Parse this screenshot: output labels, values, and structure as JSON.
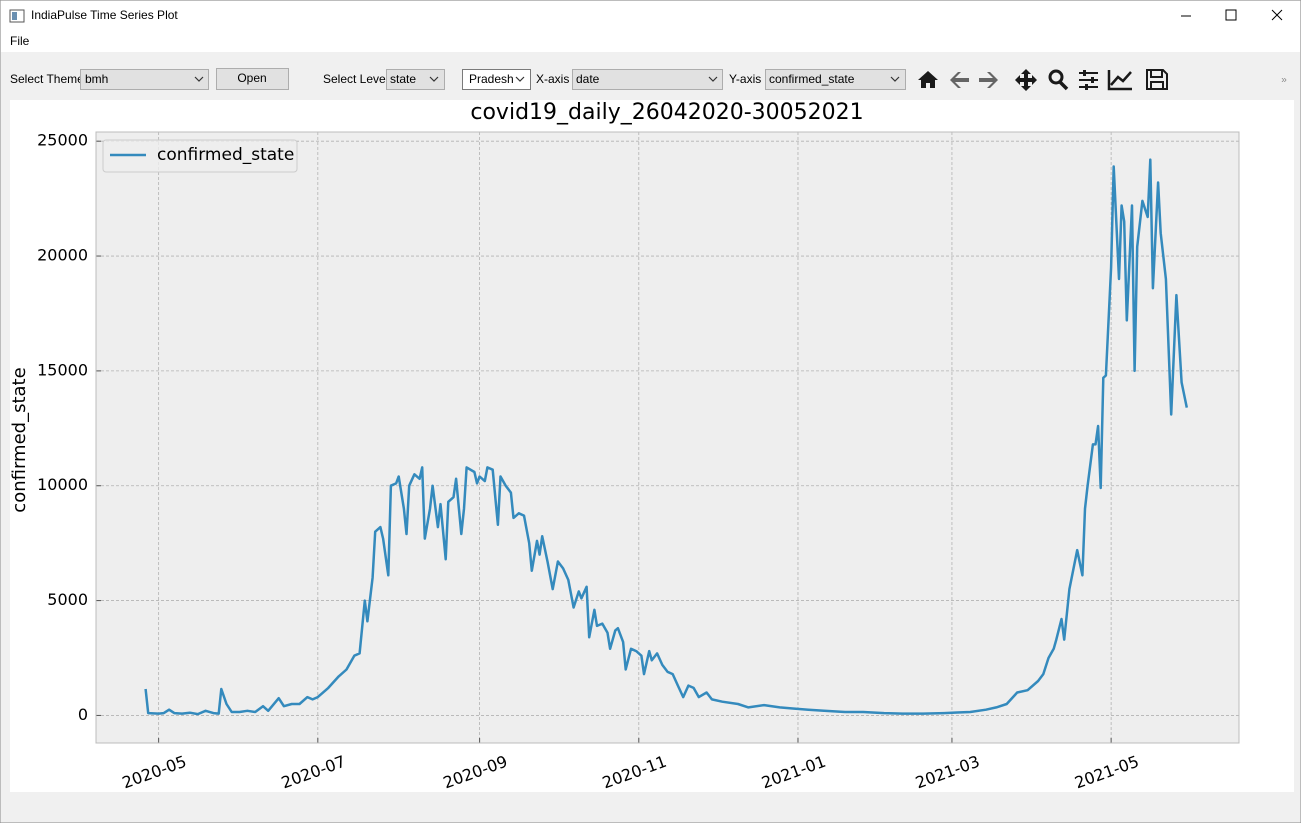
{
  "window": {
    "title": "IndiaPulse Time Series Plot"
  },
  "menu": [
    "File"
  ],
  "toolbar": {
    "theme_label": "Select Theme",
    "theme": "bmh",
    "open_button": "Open",
    "level_label": "Select Level",
    "level": "state",
    "region": "Pradesh",
    "x_label": "X-axis",
    "x_value": "date",
    "y_label": "Y-axis",
    "y_value": "confirmed_state"
  },
  "chart_data": {
    "type": "line",
    "title": "covid19_daily_26042020-30052021",
    "y_label": "confirmed_state",
    "x": [
      "2020-04-26",
      "2020-04-27",
      "2020-05-01",
      "2020-05-03",
      "2020-05-05",
      "2020-05-07",
      "2020-05-10",
      "2020-05-13",
      "2020-05-16",
      "2020-05-19",
      "2020-05-22",
      "2020-05-24",
      "2020-05-25",
      "2020-05-27",
      "2020-05-29",
      "2020-06-01",
      "2020-06-04",
      "2020-06-07",
      "2020-06-10",
      "2020-06-12",
      "2020-06-16",
      "2020-06-18",
      "2020-06-21",
      "2020-06-24",
      "2020-06-27",
      "2020-06-29",
      "2020-07-01",
      "2020-07-05",
      "2020-07-09",
      "2020-07-12",
      "2020-07-15",
      "2020-07-17",
      "2020-07-19",
      "2020-07-20",
      "2020-07-22",
      "2020-07-23",
      "2020-07-25",
      "2020-07-26",
      "2020-07-28",
      "2020-07-29",
      "2020-07-31",
      "2020-08-01",
      "2020-08-03",
      "2020-08-04",
      "2020-08-05",
      "2020-08-07",
      "2020-08-09",
      "2020-08-10",
      "2020-08-11",
      "2020-08-13",
      "2020-08-14",
      "2020-08-16",
      "2020-08-17",
      "2020-08-19",
      "2020-08-20",
      "2020-08-22",
      "2020-08-23",
      "2020-08-25",
      "2020-08-26",
      "2020-08-27",
      "2020-08-30",
      "2020-08-31",
      "2020-09-01",
      "2020-09-03",
      "2020-09-04",
      "2020-09-06",
      "2020-09-08",
      "2020-09-09",
      "2020-09-11",
      "2020-09-13",
      "2020-09-14",
      "2020-09-16",
      "2020-09-18",
      "2020-09-20",
      "2020-09-21",
      "2020-09-23",
      "2020-09-24",
      "2020-09-25",
      "2020-09-27",
      "2020-09-29",
      "2020-10-01",
      "2020-10-03",
      "2020-10-05",
      "2020-10-07",
      "2020-10-09",
      "2020-10-10",
      "2020-10-12",
      "2020-10-13",
      "2020-10-15",
      "2020-10-16",
      "2020-10-18",
      "2020-10-20",
      "2020-10-21",
      "2020-10-23",
      "2020-10-24",
      "2020-10-26",
      "2020-10-27",
      "2020-10-29",
      "2020-10-31",
      "2020-11-02",
      "2020-11-03",
      "2020-11-05",
      "2020-11-06",
      "2020-11-08",
      "2020-11-10",
      "2020-11-12",
      "2020-11-14",
      "2020-11-16",
      "2020-11-18",
      "2020-11-20",
      "2020-11-22",
      "2020-11-24",
      "2020-11-27",
      "2020-11-29",
      "2020-12-03",
      "2020-12-09",
      "2020-12-13",
      "2020-12-19",
      "2020-12-25",
      "2020-12-30",
      "2021-01-05",
      "2021-01-11",
      "2021-01-19",
      "2021-01-26",
      "2021-02-03",
      "2021-02-10",
      "2021-02-18",
      "2021-02-26",
      "2021-03-03",
      "2021-03-08",
      "2021-03-14",
      "2021-03-18",
      "2021-03-22",
      "2021-03-26",
      "2021-03-30",
      "2021-04-03",
      "2021-04-05",
      "2021-04-07",
      "2021-04-09",
      "2021-04-10",
      "2021-04-12",
      "2021-04-13",
      "2021-04-15",
      "2021-04-18",
      "2021-04-20",
      "2021-04-21",
      "2021-04-22",
      "2021-04-24",
      "2021-04-25",
      "2021-04-26",
      "2021-04-27",
      "2021-04-28",
      "2021-04-29",
      "2021-05-01",
      "2021-05-02",
      "2021-05-04",
      "2021-05-05",
      "2021-05-06",
      "2021-05-07",
      "2021-05-09",
      "2021-05-10",
      "2021-05-11",
      "2021-05-13",
      "2021-05-15",
      "2021-05-16",
      "2021-05-17",
      "2021-05-19",
      "2021-05-20",
      "2021-05-22",
      "2021-05-24",
      "2021-05-26",
      "2021-05-28",
      "2021-05-30"
    ],
    "series": [
      {
        "name": "confirmed_state",
        "color": "#348abd",
        "values": [
          1150,
          100,
          80,
          100,
          250,
          100,
          80,
          120,
          60,
          200,
          100,
          80,
          1150,
          500,
          150,
          150,
          200,
          150,
          400,
          200,
          750,
          400,
          500,
          500,
          800,
          700,
          800,
          1200,
          1700,
          2000,
          2600,
          2700,
          5000,
          4100,
          6000,
          8000,
          8200,
          7700,
          6100,
          10000,
          10100,
          10400,
          9000,
          7900,
          10000,
          10500,
          10300,
          10800,
          7700,
          9000,
          10000,
          8200,
          9200,
          6800,
          9300,
          9500,
          10300,
          7900,
          9000,
          10800,
          10600,
          10100,
          10400,
          10200,
          10800,
          10700,
          8300,
          10400,
          10000,
          9700,
          8600,
          8800,
          8700,
          7500,
          6300,
          7600,
          7000,
          7800,
          6700,
          5500,
          6700,
          6400,
          5900,
          4700,
          5400,
          5100,
          5600,
          3400,
          4600,
          3900,
          4000,
          3600,
          2900,
          3700,
          3800,
          3200,
          2000,
          2900,
          2800,
          2600,
          1800,
          2800,
          2400,
          2700,
          2200,
          1900,
          1800,
          1300,
          800,
          1300,
          1200,
          800,
          1000,
          700,
          600,
          500,
          350,
          450,
          350,
          300,
          250,
          200,
          150,
          150,
          100,
          80,
          80,
          100,
          130,
          150,
          250,
          350,
          500,
          1000,
          1100,
          1500,
          1800,
          2500,
          2900,
          3300,
          4200,
          3300,
          5500,
          7200,
          6100,
          9000,
          10000,
          11800,
          11800,
          12600,
          9900,
          14700,
          14800,
          19500,
          23900,
          19000,
          22200,
          21500,
          17200,
          22200,
          15000,
          20400,
          22400,
          21700,
          24200,
          18600,
          23200,
          21000,
          19000,
          13100,
          18300,
          14500,
          13400
        ]
      }
    ],
    "xlim": [
      "2020-04-07",
      "2021-06-19"
    ],
    "xticks": [
      {
        "value": "2020-05-01",
        "label": "2020-05"
      },
      {
        "value": "2020-07-01",
        "label": "2020-07"
      },
      {
        "value": "2020-09-01",
        "label": "2020-09"
      },
      {
        "value": "2020-11-01",
        "label": "2020-11"
      },
      {
        "value": "2021-01-01",
        "label": "2021-01"
      },
      {
        "value": "2021-03-01",
        "label": "2021-03"
      },
      {
        "value": "2021-05-01",
        "label": "2021-05"
      }
    ],
    "ylim": [
      -1200,
      25400
    ],
    "yticks": [
      0,
      5000,
      10000,
      15000,
      20000,
      25000
    ],
    "grid": true,
    "legend": "upper left"
  }
}
